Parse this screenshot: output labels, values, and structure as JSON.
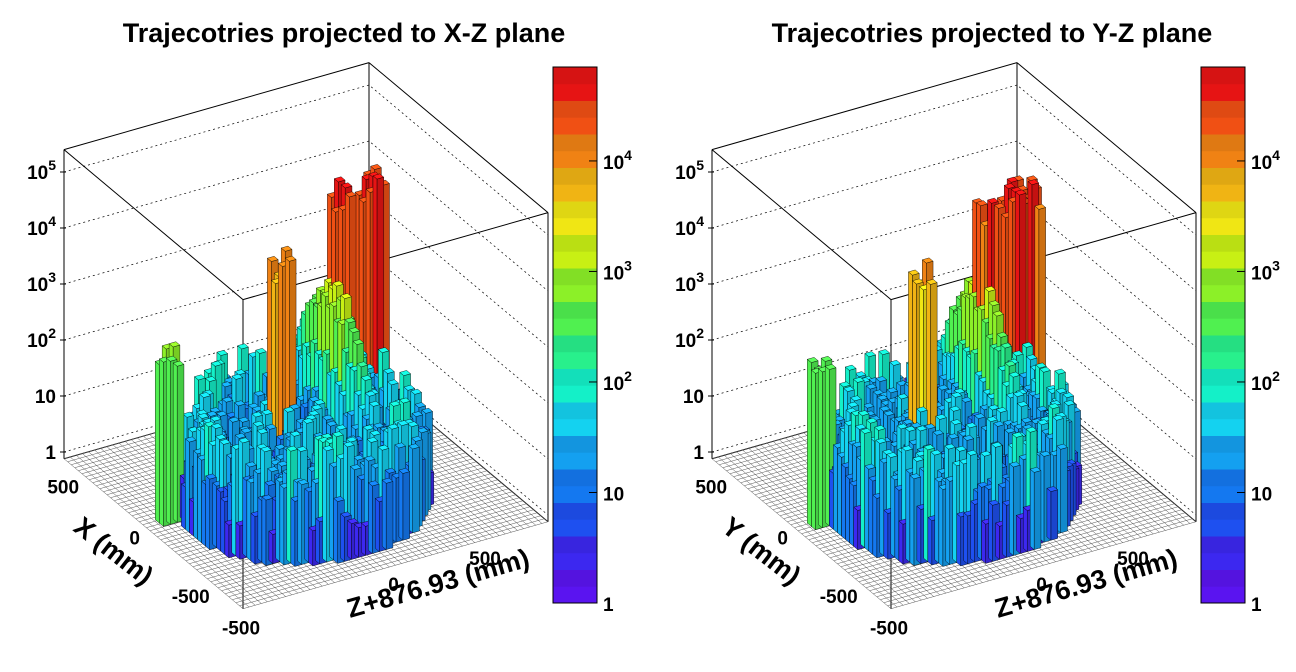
{
  "chart_data": [
    {
      "type": "lego3d-histogram",
      "title": "Trajecotries projected to X-Z plane",
      "xlabel": "Z+876.93 (mm)",
      "ylabel": "X (mm)",
      "zscale": "log",
      "x_ticks": [
        "-500",
        "0",
        "500"
      ],
      "y_ticks": [
        "-500",
        "0",
        "500"
      ],
      "z_ticks": [
        {
          "base": "10",
          "exp": "5"
        },
        {
          "base": "10",
          "exp": "4"
        },
        {
          "base": "10",
          "exp": "3"
        },
        {
          "base": "10",
          "exp": "2"
        },
        {
          "base": "10",
          "exp": ""
        },
        {
          "base": "1",
          "exp": ""
        }
      ],
      "colorbar_ticks": [
        {
          "base": "10",
          "exp": "4"
        },
        {
          "base": "10",
          "exp": "3"
        },
        {
          "base": "10",
          "exp": "2"
        },
        {
          "base": "10",
          "exp": ""
        },
        {
          "base": "1",
          "exp": ""
        }
      ],
      "peaks": [
        {
          "x": -820,
          "y": 100,
          "z": 900
        },
        {
          "x": -180,
          "y": 0,
          "z": 20000
        },
        {
          "x": 360,
          "y": 180,
          "z": 80000
        },
        {
          "x": 520,
          "y": 180,
          "z": 90000
        },
        {
          "x": 620,
          "y": 300,
          "z": 60000
        }
      ]
    },
    {
      "type": "lego3d-histogram",
      "title": "Trajecotries projected to Y-Z plane",
      "xlabel": "Z+876.93 (mm)",
      "ylabel": "Y (mm)",
      "zscale": "log",
      "x_ticks": [
        "-500",
        "0",
        "500"
      ],
      "y_ticks": [
        "-500",
        "0",
        "500"
      ],
      "z_ticks": [
        {
          "base": "10",
          "exp": "5"
        },
        {
          "base": "10",
          "exp": "4"
        },
        {
          "base": "10",
          "exp": "3"
        },
        {
          "base": "10",
          "exp": "2"
        },
        {
          "base": "10",
          "exp": ""
        },
        {
          "base": "1",
          "exp": ""
        }
      ],
      "colorbar_ticks": [
        {
          "base": "10",
          "exp": "4"
        },
        {
          "base": "10",
          "exp": "3"
        },
        {
          "base": "10",
          "exp": "2"
        },
        {
          "base": "10",
          "exp": ""
        },
        {
          "base": "1",
          "exp": ""
        }
      ],
      "peaks": [
        {
          "x": -820,
          "y": 50,
          "z": 700
        },
        {
          "x": -200,
          "y": 0,
          "z": 15000
        },
        {
          "x": 300,
          "y": 120,
          "z": 60000
        },
        {
          "x": 450,
          "y": 120,
          "z": 70000
        },
        {
          "x": 620,
          "y": 200,
          "z": 50000
        }
      ]
    }
  ],
  "colors": {
    "palette": [
      "#5a14f0",
      "#3c28f0",
      "#1e50f0",
      "#1478f0",
      "#14a0f0",
      "#14d2f0",
      "#14f0c8",
      "#28f08c",
      "#50f050",
      "#8cf028",
      "#c8f014",
      "#f0e614",
      "#f0b414",
      "#f08214",
      "#f05014",
      "#e61414"
    ]
  }
}
